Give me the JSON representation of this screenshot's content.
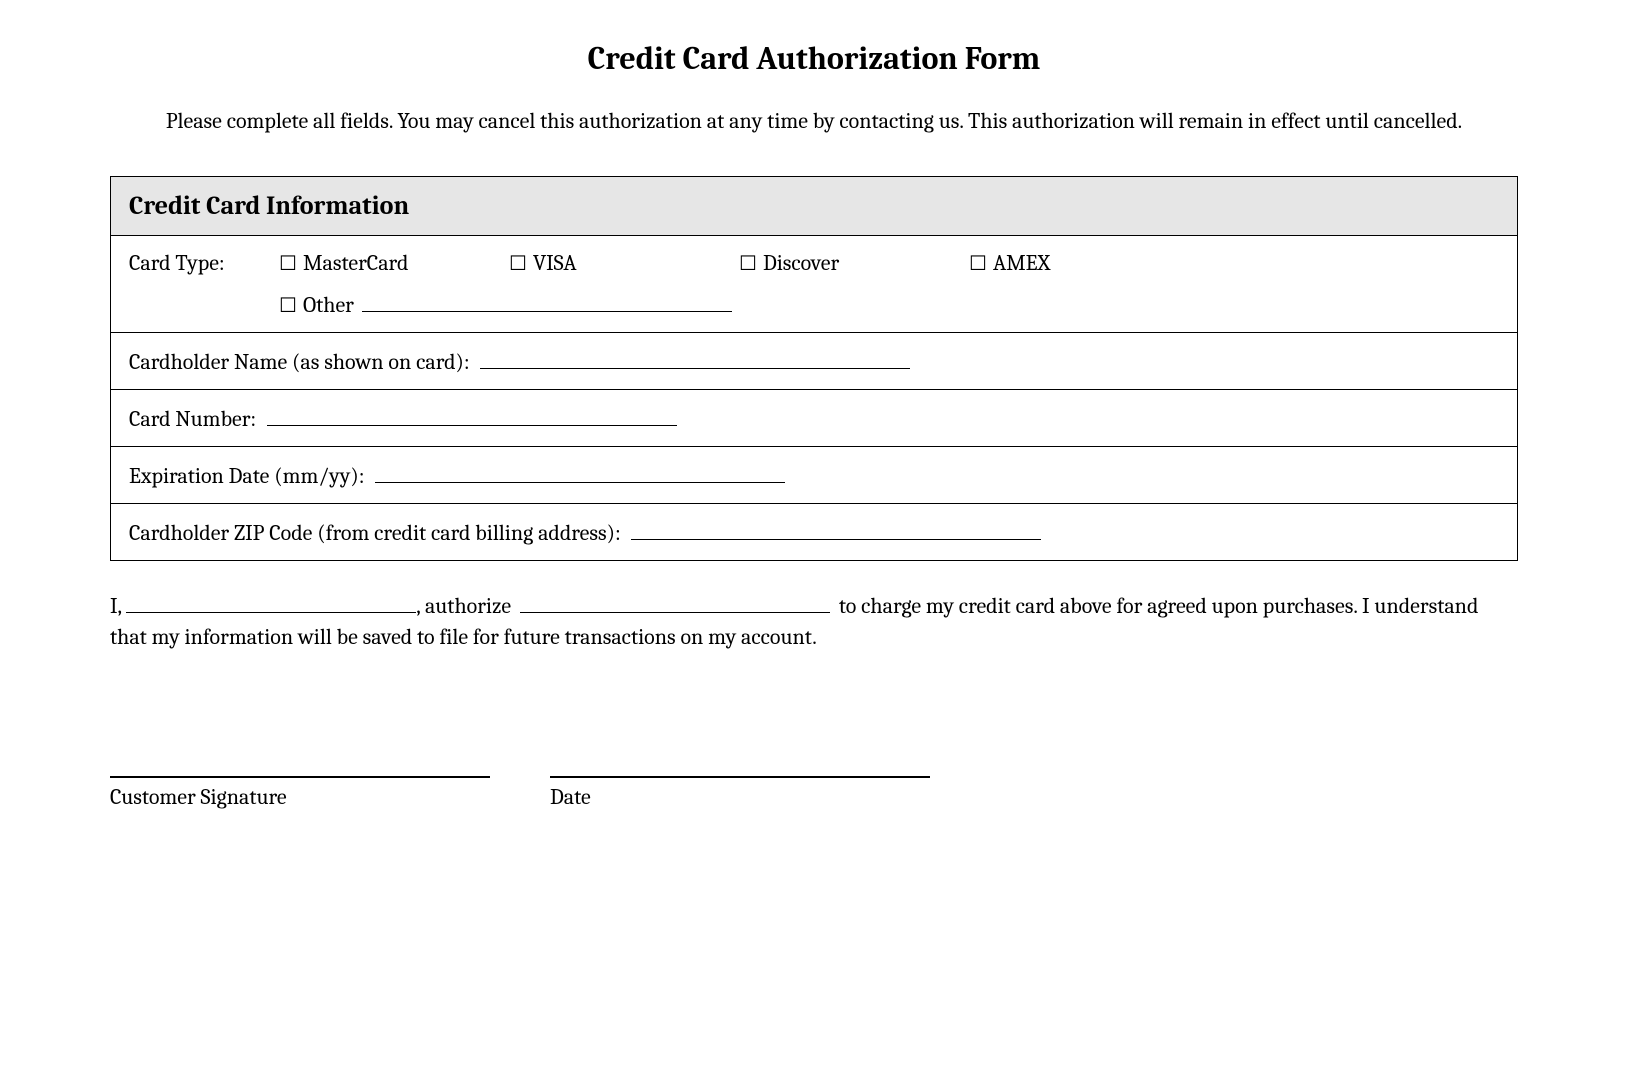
{
  "title": "Credit Card Authorization Form",
  "instructions": "Please complete all fields. You may cancel this authorization at any time by contacting us. This authorization will remain in effect until cancelled.",
  "section_header": "Credit Card Information",
  "card_type": {
    "label": "Card Type:",
    "options": {
      "mastercard": "MasterCard",
      "visa": "VISA",
      "discover": "Discover",
      "amex": "AMEX",
      "other": "Other"
    }
  },
  "fields": {
    "cardholder_name": "Cardholder Name (as shown on card):",
    "card_number": "Card Number:",
    "expiration_date": "Expiration Date (mm/yy):",
    "zip_code": "Cardholder ZIP Code (from credit card billing address):"
  },
  "authorization": {
    "prefix": "I,",
    "mid1": ", authorize",
    "suffix": "to charge my credit card above for agreed upon purchases. I understand that my information will be saved to file for future transactions on my account."
  },
  "signature": {
    "customer": "Customer Signature",
    "date": "Date"
  },
  "checkbox_symbol": "☐",
  "style": {
    "background": "#ffffff",
    "text_color": "#000000",
    "header_bg": "#e6e6e6",
    "border_color": "#000000",
    "title_fontsize": 32,
    "body_fontsize": 22,
    "section_header_fontsize": 26
  }
}
